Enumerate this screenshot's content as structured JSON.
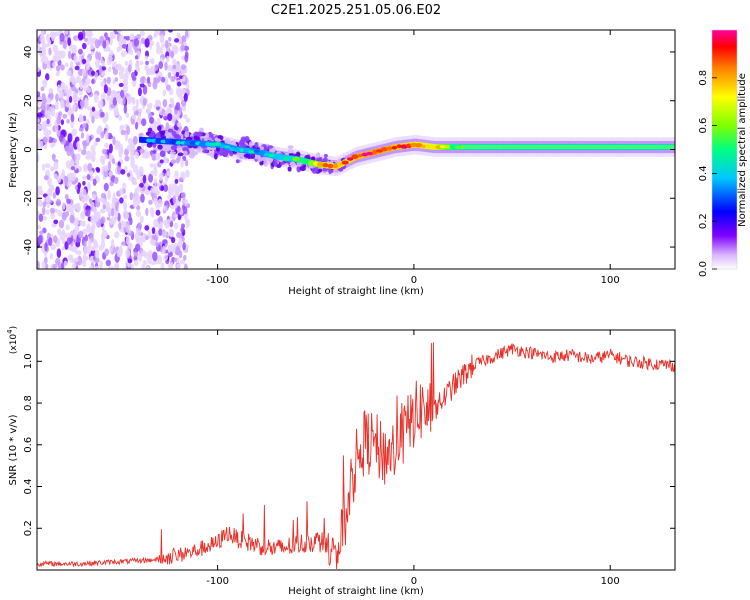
{
  "title": "C2E1.2025.251.05.06.E02",
  "chart_data": [
    {
      "type": "heatmap",
      "name": "spectrogram",
      "xlabel": "Height of straight line (km)",
      "ylabel": "Frequency (Hz)",
      "xlim": [
        -192,
        133
      ],
      "ylim": [
        -49,
        49
      ],
      "xticks": [
        -100,
        0,
        100
      ],
      "yticks": [
        -40,
        -20,
        0,
        20,
        40
      ],
      "colorbar": {
        "label": "Normalized spectral amplitude",
        "range": [
          0,
          1
        ],
        "ticks": [
          "0.0",
          "0.2",
          "0.4",
          "0.6",
          "0.8"
        ],
        "colormap": [
          "#ffffff",
          "#d9b3ff",
          "#8000ff",
          "#0000ff",
          "#00c8ff",
          "#00ff80",
          "#80ff00",
          "#ffff00",
          "#ff8000",
          "#ff0000",
          "#ff00a0"
        ]
      },
      "ridge": {
        "x": [
          -140,
          -120,
          -100,
          -90,
          -80,
          -70,
          -60,
          -50,
          -40,
          -35,
          -30,
          -20,
          -10,
          0,
          10,
          20,
          40,
          60,
          80,
          100,
          133
        ],
        "freq": [
          4,
          3,
          2,
          0,
          -1,
          -3,
          -4,
          -6,
          -7,
          -5,
          -3,
          -1,
          1,
          2,
          1,
          1,
          1,
          1,
          1,
          1,
          1
        ],
        "amplitude": [
          0.3,
          0.35,
          0.4,
          0.4,
          0.4,
          0.45,
          0.5,
          0.7,
          0.9,
          0.85,
          0.9,
          0.95,
          0.9,
          0.85,
          0.8,
          0.55,
          0.5,
          0.5,
          0.5,
          0.5,
          0.5
        ]
      },
      "noise_region_x": [
        -192,
        -125
      ]
    },
    {
      "type": "line",
      "name": "snr",
      "xlabel": "Height of straight line (km)",
      "ylabel": "SNR (10 * v/v)",
      "scale_label": "(x10",
      "scale_exp": "4",
      "scale_close": ")",
      "xlim": [
        -192,
        133
      ],
      "ylim": [
        0,
        1.15
      ],
      "xticks": [
        -100,
        0,
        100
      ],
      "yticks": [
        "0.2",
        "0.4",
        "0.6",
        "0.8",
        "1.0"
      ],
      "color": "#e8312a",
      "series": [
        {
          "name": "SNR",
          "x": [
            -192,
            -170,
            -150,
            -130,
            -115,
            -100,
            -95,
            -90,
            -80,
            -70,
            -60,
            -50,
            -42,
            -38,
            -34,
            -30,
            -25,
            -20,
            -15,
            -10,
            -5,
            0,
            5,
            10,
            15,
            20,
            30,
            40,
            50,
            60,
            70,
            80,
            90,
            100,
            110,
            120,
            133
          ],
          "y": [
            0.03,
            0.03,
            0.04,
            0.05,
            0.08,
            0.13,
            0.18,
            0.15,
            0.12,
            0.1,
            0.12,
            0.14,
            0.12,
            0.1,
            0.3,
            0.5,
            0.62,
            0.6,
            0.55,
            0.58,
            0.65,
            0.74,
            0.78,
            0.75,
            0.82,
            0.88,
            0.98,
            1.02,
            1.06,
            1.04,
            1.02,
            1.03,
            1.01,
            1.03,
            1.0,
            0.99,
            0.98
          ]
        }
      ]
    }
  ]
}
